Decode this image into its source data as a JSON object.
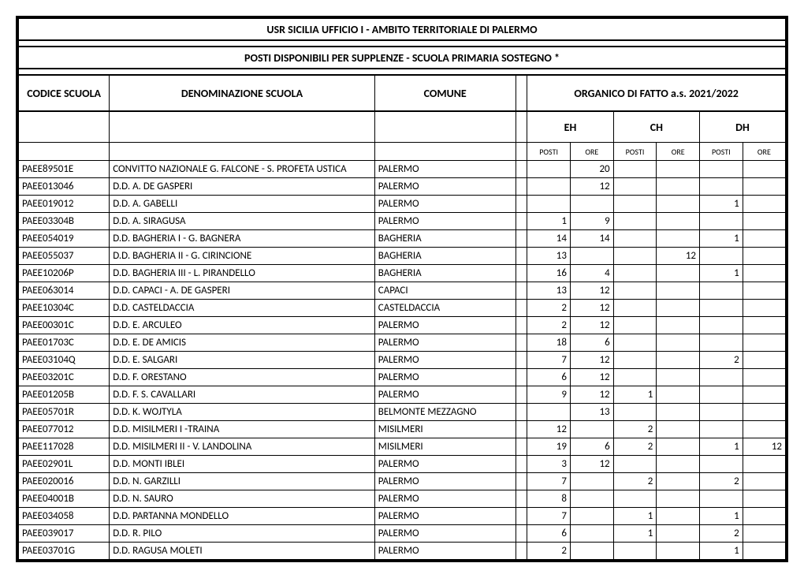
{
  "title1": "USR SICILIA  UFFICIO I - AMBITO TERRITORIALE  DI PALERMO",
  "title2": "POSTI DISPONIBILI PER SUPPLENZE - SCUOLA PRIMARIA SOSTEGNO *",
  "headers": {
    "codice": "CODICE SCUOLA",
    "denom": "DENOMINAZIONE SCUOLA",
    "comune": "COMUNE",
    "organico": "ORGANICO DI FATTO a.s. 2021/2022",
    "eh": "EH",
    "ch": "CH",
    "dh": "DH",
    "posti": "POSTI",
    "ore": "ORE"
  },
  "rows": [
    {
      "codice": "PAEE89501E",
      "denom": "CONVITTO NAZIONALE G. FALCONE - S. PROFETA USTICA",
      "comune": "PALERMO",
      "eh_p": "",
      "eh_o": "20",
      "ch_p": "",
      "ch_o": "",
      "dh_p": "",
      "dh_o": ""
    },
    {
      "codice": "PAEE013046",
      "denom": "D.D. A. DE GASPERI",
      "comune": "PALERMO",
      "eh_p": "",
      "eh_o": "12",
      "ch_p": "",
      "ch_o": "",
      "dh_p": "",
      "dh_o": ""
    },
    {
      "codice": "PAEE019012",
      "denom": "D.D. A. GABELLI",
      "comune": "PALERMO",
      "eh_p": "",
      "eh_o": "",
      "ch_p": "",
      "ch_o": "",
      "dh_p": "1",
      "dh_o": ""
    },
    {
      "codice": "PAEE03304B",
      "denom": "D.D. A. SIRAGUSA",
      "comune": "PALERMO",
      "eh_p": "1",
      "eh_o": "9",
      "ch_p": "",
      "ch_o": "",
      "dh_p": "",
      "dh_o": ""
    },
    {
      "codice": "PAEE054019",
      "denom": "D.D. BAGHERIA I - G. BAGNERA",
      "comune": "BAGHERIA",
      "eh_p": "14",
      "eh_o": "14",
      "ch_p": "",
      "ch_o": "",
      "dh_p": "1",
      "dh_o": ""
    },
    {
      "codice": "PAEE055037",
      "denom": "D.D. BAGHERIA II - G. CIRINCIONE",
      "comune": "BAGHERIA",
      "eh_p": "13",
      "eh_o": "",
      "ch_p": "",
      "ch_o": "12",
      "dh_p": "",
      "dh_o": ""
    },
    {
      "codice": "PAEE10206P",
      "denom": "D.D. BAGHERIA III - L. PIRANDELLO",
      "comune": "BAGHERIA",
      "eh_p": "16",
      "eh_o": "4",
      "ch_p": "",
      "ch_o": "",
      "dh_p": "1",
      "dh_o": ""
    },
    {
      "codice": "PAEE063014",
      "denom": "D.D. CAPACI - A. DE GASPERI",
      "comune": "CAPACI",
      "eh_p": "13",
      "eh_o": "12",
      "ch_p": "",
      "ch_o": "",
      "dh_p": "",
      "dh_o": ""
    },
    {
      "codice": "PAEE10304C",
      "denom": "D.D. CASTELDACCIA",
      "comune": "CASTELDACCIA",
      "eh_p": "2",
      "eh_o": "12",
      "ch_p": "",
      "ch_o": "",
      "dh_p": "",
      "dh_o": ""
    },
    {
      "codice": "PAEE00301C",
      "denom": "D.D. E. ARCULEO",
      "comune": "PALERMO",
      "eh_p": "2",
      "eh_o": "12",
      "ch_p": "",
      "ch_o": "",
      "dh_p": "",
      "dh_o": ""
    },
    {
      "codice": "PAEE01703C",
      "denom": "D.D. E. DE AMICIS",
      "comune": "PALERMO",
      "eh_p": "18",
      "eh_o": "6",
      "ch_p": "",
      "ch_o": "",
      "dh_p": "",
      "dh_o": ""
    },
    {
      "codice": "PAEE03104Q",
      "denom": "D.D. E. SALGARI",
      "comune": "PALERMO",
      "eh_p": "7",
      "eh_o": "12",
      "ch_p": "",
      "ch_o": "",
      "dh_p": "2",
      "dh_o": ""
    },
    {
      "codice": "PAEE03201C",
      "denom": "D.D. F. ORESTANO",
      "comune": "PALERMO",
      "eh_p": "6",
      "eh_o": "12",
      "ch_p": "",
      "ch_o": "",
      "dh_p": "",
      "dh_o": ""
    },
    {
      "codice": "PAEE01205B",
      "denom": "D.D. F. S. CAVALLARI",
      "comune": "PALERMO",
      "eh_p": "9",
      "eh_o": "12",
      "ch_p": "1",
      "ch_o": "",
      "dh_p": "",
      "dh_o": ""
    },
    {
      "codice": "PAEE05701R",
      "denom": "D.D. K. WOJTYLA",
      "comune": "BELMONTE MEZZAGNO",
      "eh_p": "",
      "eh_o": "13",
      "ch_p": "",
      "ch_o": "",
      "dh_p": "",
      "dh_o": ""
    },
    {
      "codice": "PAEE077012",
      "denom": "D.D. MISILMERI I -TRAINA",
      "comune": "MISILMERI",
      "eh_p": "12",
      "eh_o": "",
      "ch_p": "2",
      "ch_o": "",
      "dh_p": "",
      "dh_o": ""
    },
    {
      "codice": "PAEE117028",
      "denom": "D.D. MISILMERI II - V. LANDOLINA",
      "comune": "MISILMERI",
      "eh_p": "19",
      "eh_o": "6",
      "ch_p": "2",
      "ch_o": "",
      "dh_p": "1",
      "dh_o": "12"
    },
    {
      "codice": "PAEE02901L",
      "denom": "D.D. MONTI IBLEI",
      "comune": "PALERMO",
      "eh_p": "3",
      "eh_o": "12",
      "ch_p": "",
      "ch_o": "",
      "dh_p": "",
      "dh_o": ""
    },
    {
      "codice": "PAEE020016",
      "denom": "D.D. N. GARZILLI",
      "comune": "PALERMO",
      "eh_p": "7",
      "eh_o": "",
      "ch_p": "2",
      "ch_o": "",
      "dh_p": "2",
      "dh_o": ""
    },
    {
      "codice": "PAEE04001B",
      "denom": "D.D. N. SAURO",
      "comune": "PALERMO",
      "eh_p": "8",
      "eh_o": "",
      "ch_p": "",
      "ch_o": "",
      "dh_p": "",
      "dh_o": ""
    },
    {
      "codice": "PAEE034058",
      "denom": "D.D. PARTANNA MONDELLO",
      "comune": "PALERMO",
      "eh_p": "7",
      "eh_o": "",
      "ch_p": "1",
      "ch_o": "",
      "dh_p": "1",
      "dh_o": ""
    },
    {
      "codice": "PAEE039017",
      "denom": "D.D. R. PILO",
      "comune": "PALERMO",
      "eh_p": "6",
      "eh_o": "",
      "ch_p": "1",
      "ch_o": "",
      "dh_p": "2",
      "dh_o": ""
    },
    {
      "codice": "PAEE03701G",
      "denom": "D.D. RAGUSA MOLETI",
      "comune": "PALERMO",
      "eh_p": "2",
      "eh_o": "",
      "ch_p": "",
      "ch_o": "",
      "dh_p": "1",
      "dh_o": ""
    }
  ]
}
